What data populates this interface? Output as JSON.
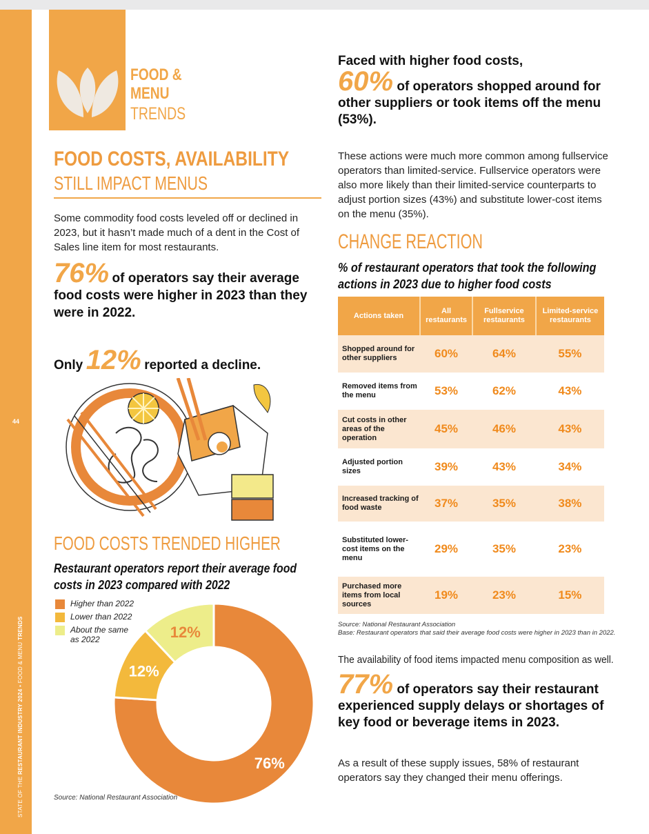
{
  "colors": {
    "accent": "#f1a648",
    "higher": "#e8883a",
    "lower": "#f3b93c",
    "same": "#eded8a",
    "table_odd": "#fbe6d0",
    "value_text": "#f08a1c"
  },
  "sidebar": {
    "page_number": "44",
    "vertical_prefix": "STATE OF THE ",
    "vertical_bold": "RESTAURANT INDUSTRY 2024",
    "vertical_suffix": " • FOOD & MENU ",
    "vertical_end": "TRENDS"
  },
  "logo": {
    "line1": "FOOD &",
    "line2": "MENU",
    "line3": "TRENDS",
    "icon": "leaf-sprout-icon"
  },
  "section": {
    "title": "FOOD COSTS, AVAILABILITY",
    "subtitle": "STILL IMPACT MENUS"
  },
  "intro": "Some commodity food costs leveled off or declined in 2023, but it hasn’t made much of a dent in the Cost of Sales line item for most restaurants.",
  "stat76": {
    "pct": "76%",
    "text": "of operators say their average food costs were higher in 2023 than they were in 2022."
  },
  "stat12": {
    "prefix": "Only",
    "pct": "12%",
    "text": "reported a decline."
  },
  "illustration": "food-takeout-illustration",
  "chart_section": {
    "title": "FOOD COSTS TRENDED HIGHER",
    "subtitle": "Restaurant operators report their average food costs in 2023 compared with 2022",
    "legend": [
      {
        "label": "Higher than 2022"
      },
      {
        "label": "Lower than 2022"
      },
      {
        "label": "About the same as 2022"
      }
    ],
    "source": "Source: National Restaurant Association"
  },
  "chart_data": {
    "type": "pie",
    "donut": true,
    "categories": [
      "Higher than 2022",
      "Lower than 2022",
      "About the same as 2022"
    ],
    "values": [
      76,
      12,
      12
    ],
    "value_labels": [
      "76%",
      "12%",
      "12%"
    ],
    "title": "FOOD COSTS TRENDED HIGHER"
  },
  "right": {
    "faced": "Faced with higher food costs,",
    "stat60": {
      "pct": "60%",
      "text": "of operators shopped around for other suppliers or took items off the menu (53%)."
    },
    "para": "These actions were much more common among fullservice operators than limited-service. Fullservice operators were also more likely than their limited-service counterparts to adjust portion sizes (43%) and substitute lower-cost items on the menu (35%).",
    "change_title": "CHANGE REACTION",
    "change_sub": "% of restaurant operators that took the following actions in 2023 due to higher food costs"
  },
  "table": {
    "headers": [
      "Actions taken",
      "All restaurants",
      "Fullservice restaurants",
      "Limited-service restaurants"
    ],
    "rows": [
      {
        "action": "Shopped around for other suppliers",
        "all": "60%",
        "full": "64%",
        "limited": "55%"
      },
      {
        "action": "Removed items from the menu",
        "all": "53%",
        "full": "62%",
        "limited": "43%"
      },
      {
        "action": "Cut costs in other areas of the operation",
        "all": "45%",
        "full": "46%",
        "limited": "43%"
      },
      {
        "action": "Adjusted portion sizes",
        "all": "39%",
        "full": "43%",
        "limited": "34%"
      },
      {
        "action": "Increased tracking of food waste",
        "all": "37%",
        "full": "35%",
        "limited": "38%"
      },
      {
        "action": "Substituted lower-cost items on the menu",
        "all": "29%",
        "full": "35%",
        "limited": "23%"
      },
      {
        "action": "Purchased more items from local sources",
        "all": "19%",
        "full": "23%",
        "limited": "15%"
      }
    ],
    "source": "Source: National Restaurant Association",
    "base": "Base: Restaurant operators that said their average food costs were higher in 2023 than in 2022."
  },
  "availability": "The availability of food items impacted menu composition as well.",
  "stat77": {
    "pct": "77%",
    "text": "of operators say their restaurant experienced supply delays or shortages of key food or beverage items in 2023."
  },
  "result": "As a result of these supply issues, 58% of restaurant operators say they changed their menu offerings."
}
